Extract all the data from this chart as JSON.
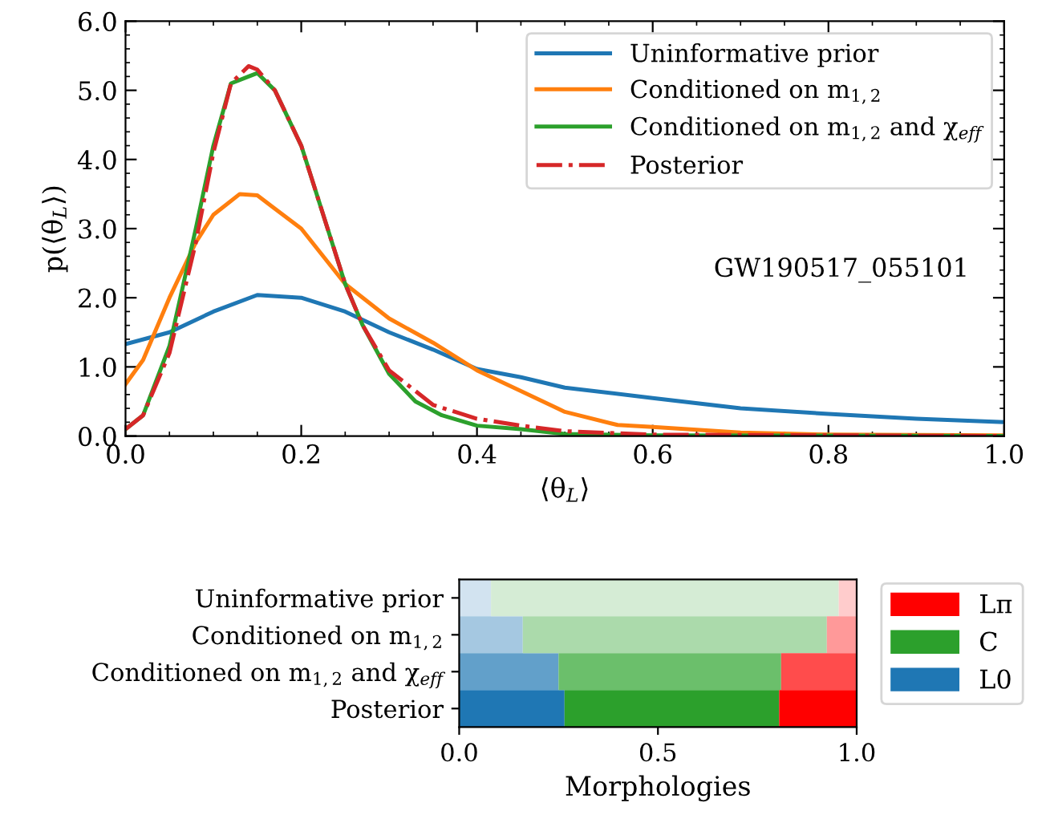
{
  "chart_data": [
    {
      "type": "line",
      "xlabel": "⟨θ$_{L}$⟩",
      "ylabel": "p(⟨θ$_{L}$⟩)",
      "xlim": [
        0,
        1
      ],
      "ylim": [
        0,
        6
      ],
      "xticks": [
        {
          "value": 0,
          "label": "0.0"
        },
        {
          "value": 0.2,
          "label": "0.2"
        },
        {
          "value": 0.4,
          "label": "0.4"
        },
        {
          "value": 0.6,
          "label": "0.6"
        },
        {
          "value": 0.8,
          "label": "0.8"
        },
        {
          "value": 1,
          "label": "1.0"
        }
      ],
      "yticks": [
        {
          "value": 0,
          "label": "0.0"
        },
        {
          "value": 1,
          "label": "1.0"
        },
        {
          "value": 2,
          "label": "2.0"
        },
        {
          "value": 3,
          "label": "3.0"
        },
        {
          "value": 4,
          "label": "4.0"
        },
        {
          "value": 5,
          "label": "5.0"
        },
        {
          "value": 6,
          "label": "6.0"
        }
      ],
      "grid": false,
      "legend": "top right",
      "annotations": [
        "GW190517_055101"
      ],
      "series": [
        {
          "name": "Uninformative prior",
          "color": "#1f77b4",
          "line_style": "solid",
          "x": [
            0,
            0.05,
            0.1,
            0.15,
            0.2,
            0.25,
            0.3,
            0.35,
            0.4,
            0.45,
            0.5,
            0.6,
            0.7,
            0.8,
            0.9,
            1.0
          ],
          "values": [
            1.33,
            1.5,
            1.8,
            2.04,
            2.0,
            1.8,
            1.5,
            1.25,
            0.97,
            0.85,
            0.7,
            0.55,
            0.4,
            0.32,
            0.25,
            0.2
          ]
        },
        {
          "name": "Conditioned on m$_{1,2}$",
          "color": "#ff7f0e",
          "line_style": "solid",
          "x": [
            0,
            0.02,
            0.05,
            0.08,
            0.1,
            0.13,
            0.15,
            0.2,
            0.25,
            0.3,
            0.35,
            0.4,
            0.45,
            0.5,
            0.56,
            0.6,
            0.7,
            0.8,
            1.0
          ],
          "values": [
            0.75,
            1.1,
            2.0,
            2.8,
            3.2,
            3.5,
            3.48,
            3.0,
            2.2,
            1.7,
            1.35,
            0.95,
            0.65,
            0.35,
            0.16,
            0.13,
            0.05,
            0.02,
            0.01
          ]
        },
        {
          "name": "Conditioned on m$_{1,2}$ and χ$_{eff}$",
          "color": "#2ca02c",
          "line_style": "solid",
          "x": [
            0,
            0.02,
            0.05,
            0.08,
            0.1,
            0.12,
            0.14,
            0.15,
            0.17,
            0.2,
            0.23,
            0.25,
            0.27,
            0.3,
            0.33,
            0.36,
            0.4,
            0.45,
            0.5,
            0.6,
            1.0
          ],
          "values": [
            0.1,
            0.3,
            1.3,
            3.0,
            4.2,
            5.1,
            5.2,
            5.25,
            5.0,
            4.2,
            3.0,
            2.2,
            1.6,
            0.9,
            0.5,
            0.3,
            0.15,
            0.1,
            0.03,
            0.01,
            0.0
          ]
        },
        {
          "name": "Posterior",
          "color": "#d62728",
          "line_style": "dashdot",
          "x": [
            0,
            0.02,
            0.05,
            0.08,
            0.1,
            0.12,
            0.14,
            0.15,
            0.17,
            0.2,
            0.23,
            0.25,
            0.27,
            0.3,
            0.35,
            0.4,
            0.45,
            0.5,
            0.6,
            1.0
          ],
          "values": [
            0.1,
            0.3,
            1.2,
            2.8,
            4.1,
            5.1,
            5.35,
            5.3,
            5.0,
            4.2,
            3.0,
            2.2,
            1.6,
            0.95,
            0.45,
            0.25,
            0.15,
            0.07,
            0.02,
            0.0
          ]
        }
      ]
    },
    {
      "type": "bar",
      "orientation": "horizontal",
      "stacked": true,
      "xlabel": "Morphologies",
      "xlim": [
        0,
        1
      ],
      "xticks": [
        {
          "value": 0,
          "label": "0.0"
        },
        {
          "value": 0.5,
          "label": "0.5"
        },
        {
          "value": 1,
          "label": "1.0"
        }
      ],
      "categories": [
        "Uninformative prior",
        "Conditioned on m$_{1,2}$",
        "Conditioned on m$_{1,2}$ and χ$_{eff}$",
        "Posterior"
      ],
      "legend": "right",
      "grid": false,
      "series": [
        {
          "name": "L0",
          "color": "#1f77b4",
          "colors": [
            "#d2e3f0",
            "#a5c8e1",
            "#62a0ca",
            "#1f77b4"
          ],
          "values": [
            0.08,
            0.16,
            0.25,
            0.265
          ]
        },
        {
          "name": "C",
          "color": "#2ca02c",
          "colors": [
            "#d5ecd5",
            "#abdaab",
            "#6bbf6b",
            "#2ca02c"
          ],
          "values": [
            0.875,
            0.765,
            0.56,
            0.54
          ]
        },
        {
          "name": "Lπ",
          "color": "#ff0000",
          "colors": [
            "#ffcccc",
            "#ff9999",
            "#ff4c4c",
            "#ff0000"
          ],
          "values": [
            0.045,
            0.075,
            0.19,
            0.195
          ]
        }
      ]
    }
  ]
}
